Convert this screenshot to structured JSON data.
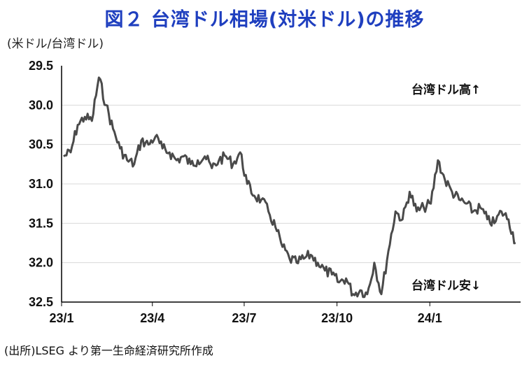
{
  "title": "図２ 台湾ドル相場(対米ドル)の推移",
  "unit": "(米ドル/台湾ドル)",
  "source": "(出所)LSEG より第一生命経済研究所作成",
  "colors": {
    "title": "#1f3fbf",
    "series": "#4a4a4a",
    "axis": "#000000",
    "grid": "#d9d9d9"
  },
  "chart_data": {
    "type": "line",
    "title": "図２ 台湾ドル相場(対米ドル)の推移",
    "ylabel": "(米ドル/台湾ドル)",
    "ylim": [
      29.5,
      32.5
    ],
    "y_inverted": true,
    "yticks": [
      "29.5",
      "30.0",
      "30.5",
      "31.0",
      "31.5",
      "32.0",
      "32.5"
    ],
    "xticks": [
      "23/1",
      "23/4",
      "23/7",
      "23/10",
      "24/1"
    ],
    "grid": true,
    "legend": "none",
    "annotations": [
      "台湾ドル高↑",
      "台湾ドル安↓"
    ],
    "series": [
      {
        "x": [
          "2023-01-03",
          "2023-01-10",
          "2023-01-17",
          "2023-01-24",
          "2023-01-31",
          "2023-02-07",
          "2023-02-14",
          "2023-02-21",
          "2023-02-28",
          "2023-03-07",
          "2023-03-14",
          "2023-03-21",
          "2023-03-28",
          "2023-04-04",
          "2023-04-11",
          "2023-04-18",
          "2023-04-25",
          "2023-05-02",
          "2023-05-09",
          "2023-05-16",
          "2023-05-23",
          "2023-05-30",
          "2023-06-06",
          "2023-06-13",
          "2023-06-20",
          "2023-06-27",
          "2023-07-04",
          "2023-07-11",
          "2023-07-18",
          "2023-07-25",
          "2023-08-01",
          "2023-08-08",
          "2023-08-15",
          "2023-08-22",
          "2023-08-29",
          "2023-09-05",
          "2023-09-12",
          "2023-09-19",
          "2023-09-26",
          "2023-10-03",
          "2023-10-10",
          "2023-10-17",
          "2023-10-24",
          "2023-10-31",
          "2023-11-07",
          "2023-11-14",
          "2023-11-21",
          "2023-11-28",
          "2023-12-05",
          "2023-12-12",
          "2023-12-19",
          "2023-12-26",
          "2024-01-02",
          "2024-01-09",
          "2024-01-16",
          "2024-01-23",
          "2024-01-30",
          "2024-02-06",
          "2024-02-13",
          "2024-02-20",
          "2024-02-27",
          "2024-03-05",
          "2024-03-12",
          "2024-03-19",
          "2024-03-26"
        ],
        "values": [
          30.65,
          30.6,
          30.25,
          30.15,
          30.2,
          29.65,
          30.0,
          30.3,
          30.55,
          30.7,
          30.75,
          30.45,
          30.5,
          30.4,
          30.55,
          30.6,
          30.7,
          30.65,
          30.75,
          30.7,
          30.65,
          30.8,
          30.7,
          30.65,
          30.75,
          30.6,
          31.0,
          31.15,
          31.2,
          31.35,
          31.55,
          31.8,
          31.95,
          32.0,
          31.95,
          31.9,
          32.0,
          32.1,
          32.15,
          32.25,
          32.2,
          32.4,
          32.35,
          32.4,
          32.0,
          32.4,
          31.85,
          31.35,
          31.45,
          31.1,
          31.35,
          31.3,
          31.25,
          30.7,
          30.95,
          31.1,
          31.2,
          31.25,
          31.35,
          31.3,
          31.45,
          31.5,
          31.35,
          31.45,
          31.75
        ]
      }
    ]
  }
}
